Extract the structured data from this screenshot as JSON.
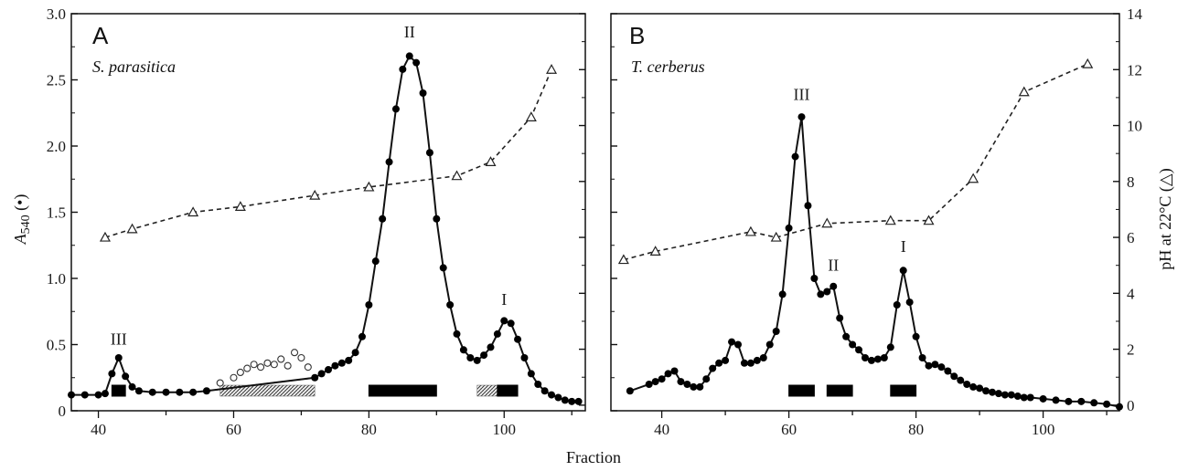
{
  "chart_data": {
    "type": "line",
    "xlabel": "Fraction",
    "ylabel_left": {
      "symbol": "A",
      "subscript": "540",
      "marker": " (•)"
    },
    "ylabel_right": "pH at 22°C (△)",
    "left_y_ticks": [
      "0",
      "0.5",
      "1.0",
      "1.5",
      "2.0",
      "2.5",
      "3.0"
    ],
    "right_y_ticks": [
      "0",
      "2",
      "4",
      "6",
      "8",
      "10",
      "12",
      "14"
    ],
    "panels": [
      {
        "id": "A",
        "letter": "A",
        "species": "S. parasitica",
        "xlim": [
          36,
          112
        ],
        "ylim_absorbance": [
          0,
          3.0
        ],
        "ylim_ph": [
          -0.2,
          14
        ],
        "x_ticks": [
          "40",
          "60",
          "80",
          "100"
        ],
        "absorbance": [
          [
            36,
            0.12
          ],
          [
            38,
            0.12
          ],
          [
            40,
            0.12
          ],
          [
            41,
            0.13
          ],
          [
            42,
            0.28
          ],
          [
            43,
            0.4
          ],
          [
            44,
            0.26
          ],
          [
            45,
            0.18
          ],
          [
            46,
            0.15
          ],
          [
            48,
            0.14
          ],
          [
            50,
            0.14
          ],
          [
            52,
            0.14
          ],
          [
            54,
            0.14
          ],
          [
            56,
            0.15
          ],
          [
            72,
            0.25
          ],
          [
            73,
            0.28
          ],
          [
            74,
            0.31
          ],
          [
            75,
            0.34
          ],
          [
            76,
            0.36
          ],
          [
            77,
            0.38
          ],
          [
            78,
            0.44
          ],
          [
            79,
            0.56
          ],
          [
            80,
            0.8
          ],
          [
            81,
            1.13
          ],
          [
            82,
            1.45
          ],
          [
            83,
            1.88
          ],
          [
            84,
            2.28
          ],
          [
            85,
            2.58
          ],
          [
            86,
            2.68
          ],
          [
            87,
            2.63
          ],
          [
            88,
            2.4
          ],
          [
            89,
            1.95
          ],
          [
            90,
            1.45
          ],
          [
            91,
            1.08
          ],
          [
            92,
            0.8
          ],
          [
            93,
            0.58
          ],
          [
            94,
            0.46
          ],
          [
            95,
            0.4
          ],
          [
            96,
            0.38
          ],
          [
            97,
            0.42
          ],
          [
            98,
            0.48
          ],
          [
            99,
            0.58
          ],
          [
            100,
            0.68
          ],
          [
            101,
            0.66
          ],
          [
            102,
            0.54
          ],
          [
            103,
            0.4
          ],
          [
            104,
            0.28
          ],
          [
            105,
            0.2
          ],
          [
            106,
            0.15
          ],
          [
            107,
            0.12
          ],
          [
            108,
            0.1
          ],
          [
            109,
            0.08
          ],
          [
            110,
            0.07
          ],
          [
            111,
            0.07
          ]
        ],
        "ph": [
          [
            41,
            6.0
          ],
          [
            45,
            6.3
          ],
          [
            54,
            6.9
          ],
          [
            61,
            7.1
          ],
          [
            72,
            7.5
          ],
          [
            80,
            7.8
          ],
          [
            93,
            8.2
          ],
          [
            98,
            8.7
          ],
          [
            104,
            10.3
          ],
          [
            107,
            12.0
          ]
        ],
        "ph_dash_extension": [
          [
            56,
            0.15
          ],
          [
            72,
            0.25
          ]
        ],
        "open_circles": [
          [
            58,
            0.21
          ],
          [
            60,
            0.25
          ],
          [
            61,
            0.29
          ],
          [
            62,
            0.32
          ],
          [
            63,
            0.35
          ],
          [
            64,
            0.33
          ],
          [
            65,
            0.36
          ],
          [
            66,
            0.35
          ],
          [
            67,
            0.39
          ],
          [
            68,
            0.34
          ],
          [
            69,
            0.44
          ],
          [
            70,
            0.4
          ],
          [
            71,
            0.33
          ]
        ],
        "fraction_bars": [
          {
            "x1": 42,
            "x2": 44,
            "style": "solid"
          },
          {
            "x1": 58,
            "x2": 72,
            "style": "hatched"
          },
          {
            "x1": 80,
            "x2": 90,
            "style": "solid"
          },
          {
            "x1": 96,
            "x2": 99,
            "style": "hatched"
          },
          {
            "x1": 99,
            "x2": 102,
            "style": "solid"
          }
        ],
        "peak_labels": [
          {
            "text": "III",
            "x": 43,
            "y": 0.5
          },
          {
            "text": "II",
            "x": 86,
            "y": 2.82
          },
          {
            "text": "I",
            "x": 100,
            "y": 0.8
          }
        ]
      },
      {
        "id": "B",
        "letter": "B",
        "species": "T. cerberus",
        "xlim": [
          32,
          112
        ],
        "ylim_absorbance": [
          0,
          3.0
        ],
        "ylim_ph": [
          -0.2,
          14
        ],
        "x_ticks": [
          "40",
          "60",
          "80",
          "100"
        ],
        "absorbance": [
          [
            35,
            0.15
          ],
          [
            38,
            0.2
          ],
          [
            39,
            0.22
          ],
          [
            40,
            0.24
          ],
          [
            41,
            0.28
          ],
          [
            42,
            0.3
          ],
          [
            43,
            0.22
          ],
          [
            44,
            0.2
          ],
          [
            45,
            0.18
          ],
          [
            46,
            0.18
          ],
          [
            47,
            0.24
          ],
          [
            48,
            0.32
          ],
          [
            49,
            0.36
          ],
          [
            50,
            0.38
          ],
          [
            51,
            0.52
          ],
          [
            52,
            0.5
          ],
          [
            53,
            0.36
          ],
          [
            54,
            0.36
          ],
          [
            55,
            0.38
          ],
          [
            56,
            0.4
          ],
          [
            57,
            0.5
          ],
          [
            58,
            0.6
          ],
          [
            59,
            0.88
          ],
          [
            60,
            1.38
          ],
          [
            61,
            1.92
          ],
          [
            62,
            2.22
          ],
          [
            63,
            1.55
          ],
          [
            64,
            1.0
          ],
          [
            65,
            0.88
          ],
          [
            66,
            0.9
          ],
          [
            67,
            0.94
          ],
          [
            68,
            0.7
          ],
          [
            69,
            0.56
          ],
          [
            70,
            0.5
          ],
          [
            71,
            0.46
          ],
          [
            72,
            0.4
          ],
          [
            73,
            0.38
          ],
          [
            74,
            0.39
          ],
          [
            75,
            0.4
          ],
          [
            76,
            0.48
          ],
          [
            77,
            0.8
          ],
          [
            78,
            1.06
          ],
          [
            79,
            0.82
          ],
          [
            80,
            0.56
          ],
          [
            81,
            0.4
          ],
          [
            82,
            0.34
          ],
          [
            83,
            0.35
          ],
          [
            84,
            0.33
          ],
          [
            85,
            0.3
          ],
          [
            86,
            0.26
          ],
          [
            87,
            0.23
          ],
          [
            88,
            0.2
          ],
          [
            89,
            0.18
          ],
          [
            90,
            0.17
          ],
          [
            91,
            0.15
          ],
          [
            92,
            0.14
          ],
          [
            93,
            0.13
          ],
          [
            94,
            0.12
          ],
          [
            95,
            0.12
          ],
          [
            96,
            0.11
          ],
          [
            97,
            0.1
          ],
          [
            98,
            0.1
          ],
          [
            100,
            0.09
          ],
          [
            102,
            0.08
          ],
          [
            104,
            0.07
          ],
          [
            106,
            0.07
          ],
          [
            108,
            0.06
          ],
          [
            110,
            0.05
          ],
          [
            112,
            0.03
          ]
        ],
        "ph": [
          [
            34,
            5.2
          ],
          [
            39,
            5.5
          ],
          [
            54,
            6.2
          ],
          [
            58,
            6.0
          ],
          [
            66,
            6.5
          ],
          [
            76,
            6.6
          ],
          [
            82,
            6.6
          ],
          [
            89,
            8.1
          ],
          [
            97,
            11.2
          ],
          [
            107,
            12.2
          ]
        ],
        "open_circles": [],
        "fraction_bars": [
          {
            "x1": 60,
            "x2": 64,
            "style": "solid"
          },
          {
            "x1": 66,
            "x2": 70,
            "style": "solid"
          },
          {
            "x1": 76,
            "x2": 80,
            "style": "solid"
          }
        ],
        "peak_labels": [
          {
            "text": "III",
            "x": 62,
            "y": 2.35
          },
          {
            "text": "II",
            "x": 67,
            "y": 1.06
          },
          {
            "text": "I",
            "x": 78,
            "y": 1.2
          }
        ]
      }
    ]
  }
}
